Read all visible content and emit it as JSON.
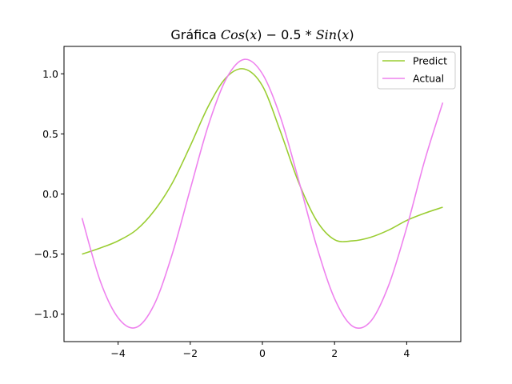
{
  "chart_data": {
    "type": "line",
    "title_parts": [
      {
        "t": "Gráfica ",
        "italic": false
      },
      {
        "t": "Cos",
        "italic": true
      },
      {
        "t": "(",
        "italic": false
      },
      {
        "t": "x",
        "italic": true
      },
      {
        "t": ") − 0.5 * ",
        "italic": false
      },
      {
        "t": "Sin",
        "italic": true
      },
      {
        "t": "(",
        "italic": false
      },
      {
        "t": "x",
        "italic": true
      },
      {
        "t": ")",
        "italic": false
      }
    ],
    "xlim": [
      -5.5,
      5.5
    ],
    "ylim": [
      -1.228,
      1.228
    ],
    "xticks": [
      -4,
      -2,
      0,
      2,
      4
    ],
    "xtick_labels": [
      "−4",
      "−2",
      "0",
      "2",
      "4"
    ],
    "yticks": [
      -1.0,
      -0.5,
      0.0,
      0.5,
      1.0
    ],
    "ytick_labels": [
      "−1.0",
      "−0.5",
      "0.0",
      "0.5",
      "1.0"
    ],
    "grid": false,
    "legend_position": "top-right",
    "series": [
      {
        "name": "Predict",
        "color": "#9acd32",
        "x": [
          -5.0,
          -4.5,
          -4.0,
          -3.5,
          -3.0,
          -2.5,
          -2.0,
          -1.5,
          -1.0,
          -0.5,
          0.0,
          0.5,
          1.0,
          1.5,
          2.0,
          2.5,
          3.0,
          3.5,
          4.0,
          4.5,
          5.0
        ],
        "y": [
          -0.5,
          -0.45,
          -0.39,
          -0.3,
          -0.14,
          0.09,
          0.4,
          0.73,
          0.97,
          1.04,
          0.9,
          0.52,
          0.1,
          -0.22,
          -0.38,
          -0.39,
          -0.36,
          -0.3,
          -0.22,
          -0.16,
          -0.11
        ]
      },
      {
        "name": "Actual",
        "color": "#ee82ee",
        "x": [
          -5.0,
          -4.5,
          -4.0,
          -3.5,
          -3.0,
          -2.5,
          -2.0,
          -1.5,
          -1.0,
          -0.5,
          0.0,
          0.5,
          1.0,
          1.5,
          2.0,
          2.5,
          3.0,
          3.5,
          4.0,
          4.5,
          5.0
        ],
        "y": [
          -0.2,
          -0.72,
          -1.03,
          -1.11,
          -0.92,
          -0.5,
          0.04,
          0.57,
          0.96,
          1.12,
          1.0,
          0.64,
          0.12,
          -0.43,
          -0.87,
          -1.1,
          -1.06,
          -0.76,
          -0.28,
          0.28,
          0.76
        ]
      }
    ]
  }
}
